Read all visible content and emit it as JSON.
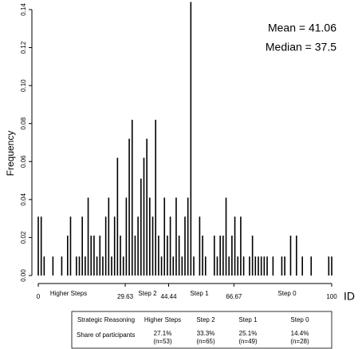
{
  "chart_data": {
    "type": "bar",
    "ylabel": "Frequency",
    "xlabel": "ID",
    "annotations": [
      "Mean = 41.06",
      "Median = 37.5"
    ],
    "color": "#000000",
    "xlim": [
      0,
      100
    ],
    "xticks": [
      0,
      29.63,
      44.44,
      66.67,
      100
    ],
    "ylim": [
      0,
      0.14
    ],
    "yticks": [
      {
        "value": 0,
        "label": "0.00"
      },
      0.02,
      0.04,
      0.06,
      0.08,
      {
        "value": 0.1,
        "label": "0.10"
      },
      0.12,
      0.14
    ],
    "step_labels": [
      "Higher Steps",
      "Step 2",
      "Step 1",
      "Step 0"
    ],
    "x": [
      0,
      1,
      2,
      5,
      8,
      10,
      11,
      13,
      14,
      15,
      16,
      17,
      18,
      19,
      20,
      21,
      22,
      23,
      24,
      25,
      26,
      27,
      28,
      29,
      30,
      31,
      32,
      33,
      34,
      35,
      36,
      37,
      38,
      39,
      40,
      41,
      42,
      43,
      44,
      45,
      46,
      47,
      48,
      49,
      50,
      51,
      52,
      53,
      55,
      56,
      57,
      60,
      61,
      62,
      63,
      64,
      65,
      66,
      67,
      68,
      69,
      70,
      72,
      73,
      74,
      75,
      76,
      77,
      78,
      80,
      83,
      84,
      86,
      88,
      90,
      93,
      99,
      100
    ],
    "values": [
      0.031,
      0.031,
      0.01,
      0.01,
      0.01,
      0.021,
      0.031,
      0.01,
      0.01,
      0.031,
      0.01,
      0.041,
      0.021,
      0.021,
      0.01,
      0.021,
      0.01,
      0.031,
      0.041,
      0.01,
      0.031,
      0.062,
      0.021,
      0.01,
      0.041,
      0.072,
      0.082,
      0.021,
      0.031,
      0.051,
      0.062,
      0.072,
      0.041,
      0.031,
      0.082,
      0.021,
      0.01,
      0.041,
      0.021,
      0.031,
      0.01,
      0.041,
      0.021,
      0.01,
      0.031,
      0.041,
      0.144,
      0.01,
      0.031,
      0.021,
      0.01,
      0.021,
      0.01,
      0.021,
      0.021,
      0.041,
      0.01,
      0.021,
      0.031,
      0.01,
      0.031,
      0.01,
      0.01,
      0.021,
      0.01,
      0.01,
      0.01,
      0.01,
      0.01,
      0.01,
      0.01,
      0.01,
      0.021,
      0.021,
      0.01,
      0.01,
      0.01,
      0.01
    ],
    "table": {
      "header": [
        "Strategic Reasoning",
        "Higher Steps",
        "Step 2",
        "Step 1",
        "Step 0"
      ],
      "row_label": "Share of participants",
      "shares": [
        [
          "27.1%",
          "(n=53)"
        ],
        [
          "33.3%",
          "(n=65)"
        ],
        [
          "25.1%",
          "(n=49)"
        ],
        [
          "14.4%",
          "(n=28)"
        ]
      ]
    }
  }
}
